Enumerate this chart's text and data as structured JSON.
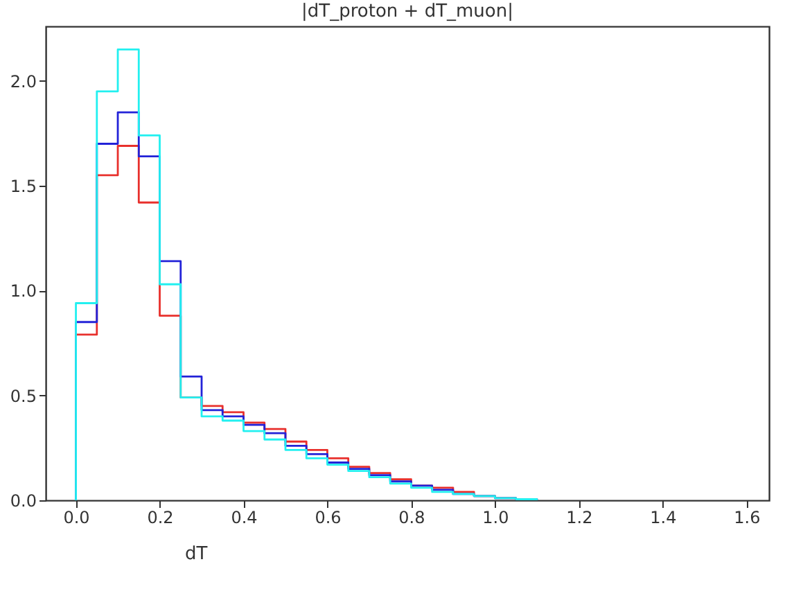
{
  "chart_data": {
    "type": "histogram",
    "title": "|dT_proton + dT_muon|",
    "xlabel": "dT",
    "bins": [
      0,
      0.05,
      0.1,
      0.15,
      0.2,
      0.25,
      0.3,
      0.35,
      0.4,
      0.45,
      0.5,
      0.55,
      0.6,
      0.65,
      0.7,
      0.75,
      0.8,
      0.85,
      0.9,
      0.95,
      1.0,
      1.05,
      1.1
    ],
    "series": [
      {
        "color": "#e8302c",
        "values": [
          0.79,
          1.55,
          1.69,
          1.42,
          0.88,
          0.49,
          0.45,
          0.42,
          0.37,
          0.34,
          0.28,
          0.24,
          0.2,
          0.16,
          0.13,
          0.1,
          0.07,
          0.06,
          0.04,
          0.02,
          0.01,
          0.005
        ]
      },
      {
        "color": "#2323d8",
        "values": [
          0.85,
          1.7,
          1.85,
          1.64,
          1.14,
          0.59,
          0.43,
          0.4,
          0.36,
          0.32,
          0.26,
          0.22,
          0.18,
          0.15,
          0.12,
          0.09,
          0.07,
          0.05,
          0.03,
          0.02,
          0.01,
          0.005
        ]
      },
      {
        "color": "#22f0f0",
        "values": [
          0.94,
          1.95,
          2.15,
          1.74,
          1.03,
          0.49,
          0.4,
          0.38,
          0.33,
          0.29,
          0.24,
          0.2,
          0.17,
          0.14,
          0.11,
          0.08,
          0.06,
          0.04,
          0.03,
          0.02,
          0.01,
          0.005
        ]
      }
    ],
    "xlim": [
      -0.072,
      1.654
    ],
    "ylim": [
      0,
      2.26
    ],
    "xticks": [
      {
        "value": 0,
        "label": "0.0"
      },
      {
        "value": 0.2,
        "label": "0.2"
      },
      {
        "value": 0.4,
        "label": "0.4"
      },
      {
        "value": 0.6,
        "label": "0.6"
      },
      {
        "value": 0.8,
        "label": "0.8"
      },
      {
        "value": 1.0,
        "label": "1.0"
      },
      {
        "value": 1.2,
        "label": "1.2"
      },
      {
        "value": 1.4,
        "label": "1.4"
      },
      {
        "value": 1.6,
        "label": "1.6"
      }
    ],
    "yticks": [
      {
        "value": 0,
        "label": "0.0"
      },
      {
        "value": 0.5,
        "label": "0.5"
      },
      {
        "value": 1.0,
        "label": "1.0"
      },
      {
        "value": 1.5,
        "label": "1.5"
      },
      {
        "value": 2.0,
        "label": "2.0"
      }
    ],
    "grid": false
  }
}
